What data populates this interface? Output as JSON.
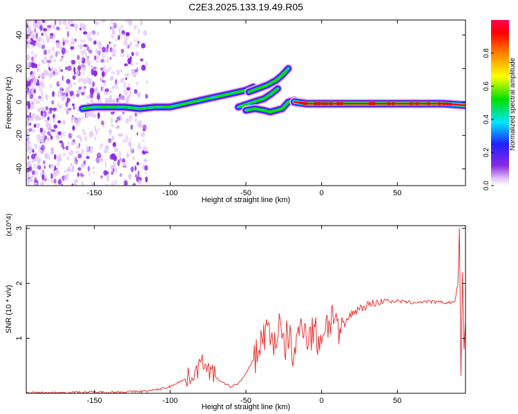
{
  "title": "C2E3.2025.133.19.49.R05",
  "chart_data": [
    {
      "type": "heatmap",
      "title": "C2E3.2025.133.19.49.R05",
      "xlabel": "Height of straight line (km)",
      "ylabel": "Frequency (Hz)",
      "xlim": [
        -195,
        95
      ],
      "ylim": [
        -50,
        49
      ],
      "x_ticks": [
        -150,
        -100,
        -50,
        0,
        50
      ],
      "y_ticks": [
        -40,
        -20,
        0,
        20,
        40
      ],
      "x_tick_labels": [
        "-150",
        "-100",
        "-50",
        "0",
        "50"
      ],
      "y_tick_labels": [
        "-40",
        "-20",
        "0",
        "20",
        "40"
      ],
      "grid": false,
      "colorbar": {
        "label": "Normalized spectral amplitude",
        "range": [
          0,
          1
        ],
        "ticks": [
          "0.0",
          "0.2",
          "0.4",
          "0.6",
          "0.8"
        ],
        "colors": [
          "#ffffff",
          "#e4c8f8",
          "#8a2be2",
          "#2020ff",
          "#00e5ff",
          "#00e000",
          "#ffff00",
          "#ff8000",
          "#ff0000",
          "#ff0055"
        ]
      },
      "ridges": [
        {
          "x": [
            -158,
            -150,
            -140,
            -130,
            -120,
            -110,
            -100,
            -90,
            -80,
            -70,
            -60,
            -50,
            -45
          ],
          "y": [
            -4,
            -3,
            -3,
            -3,
            -4,
            -3,
            -3,
            -1,
            1,
            3,
            5,
            7,
            9
          ]
        },
        {
          "x": [
            -48,
            -42,
            -36,
            -30,
            -26,
            -22
          ],
          "y": [
            6,
            8,
            10,
            13,
            16,
            20
          ]
        },
        {
          "x": [
            -55,
            -45,
            -38,
            -33,
            -29
          ],
          "y": [
            -3,
            0,
            2,
            5,
            8
          ]
        },
        {
          "x": [
            -50,
            -44,
            -38,
            -34,
            -30,
            -26,
            -22,
            -18
          ],
          "y": [
            -5,
            -4,
            -5,
            -6,
            -5,
            -4,
            0,
            1
          ]
        },
        {
          "x": [
            -18,
            -10,
            0,
            10,
            20,
            40,
            60,
            80,
            95
          ],
          "y": [
            0,
            -1,
            -1,
            -1,
            -1,
            -1,
            -1,
            -1,
            -2
          ]
        }
      ]
    },
    {
      "type": "line",
      "xlabel": "Height of straight line (km)",
      "ylabel": "SNR (10 * v/v)",
      "y_multiplier": "(x10^4)",
      "xlim": [
        -195,
        95
      ],
      "ylim": [
        0,
        3.05
      ],
      "x_ticks": [
        -150,
        -100,
        -50,
        0,
        50
      ],
      "y_ticks": [
        1,
        2,
        3
      ],
      "x_tick_labels": [
        "-150",
        "-100",
        "-50",
        "0",
        "50"
      ],
      "y_tick_labels": [
        "1",
        "2",
        "3"
      ],
      "grid": false,
      "color": "#e83030",
      "x": [
        -195,
        -180,
        -160,
        -140,
        -125,
        -115,
        -108,
        -100,
        -95,
        -90,
        -85,
        -80,
        -77,
        -74,
        -70,
        -66,
        -60,
        -55,
        -50,
        -45,
        -40,
        -37,
        -34,
        -31,
        -28,
        -25,
        -22,
        -19,
        -16,
        -13,
        -10,
        -8,
        -5,
        -2,
        0,
        3,
        6,
        9,
        12,
        16,
        20,
        25,
        30,
        35,
        40,
        43,
        46,
        50,
        55,
        60,
        65,
        70,
        75,
        80,
        85,
        88,
        90,
        91,
        92,
        93,
        94,
        95
      ],
      "y": [
        0.01,
        0.01,
        0.02,
        0.02,
        0.03,
        0.04,
        0.07,
        0.12,
        0.2,
        0.25,
        0.35,
        0.5,
        0.62,
        0.4,
        0.3,
        0.2,
        0.12,
        0.18,
        0.35,
        0.62,
        0.9,
        1.15,
        1.05,
        0.95,
        1.2,
        0.8,
        1.1,
        0.7,
        0.9,
        1.4,
        1.1,
        1.0,
        1.2,
        0.9,
        1.1,
        1.25,
        1.35,
        1.5,
        0.9,
        1.3,
        1.45,
        1.55,
        1.6,
        1.65,
        1.65,
        1.72,
        1.66,
        1.68,
        1.66,
        1.65,
        1.66,
        1.67,
        1.66,
        1.65,
        1.65,
        1.67,
        2.0,
        3.0,
        0.3,
        2.2,
        0.8,
        1.3
      ]
    }
  ]
}
